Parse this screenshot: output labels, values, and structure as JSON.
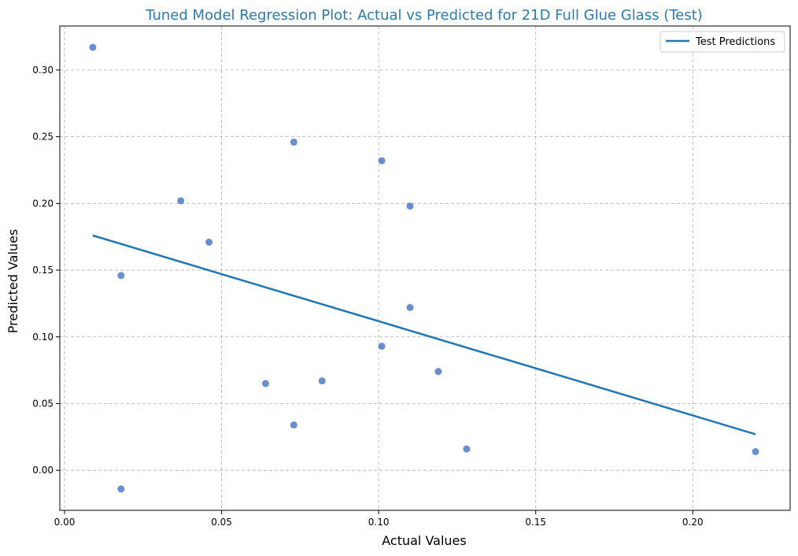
{
  "chart_data": {
    "type": "scatter",
    "title": "Tuned Model Regression Plot: Actual vs Predicted for 21D Full Glue Glass (Test)",
    "xlabel": "Actual Values",
    "ylabel": "Predicted Values",
    "xlim": [
      -0.0015,
      0.231
    ],
    "ylim": [
      -0.03,
      0.333
    ],
    "xticks": [
      0.0,
      0.05,
      0.1,
      0.15,
      0.2
    ],
    "xtick_labels": [
      "0.00",
      "0.05",
      "0.10",
      "0.15",
      "0.20"
    ],
    "yticks": [
      0.0,
      0.05,
      0.1,
      0.15,
      0.2,
      0.25,
      0.3
    ],
    "ytick_labels": [
      "0.00",
      "0.05",
      "0.10",
      "0.15",
      "0.20",
      "0.25",
      "0.30"
    ],
    "grid": true,
    "legend_position": "top-right",
    "colors": {
      "title": "#2a7ab5",
      "points": "#4472c4",
      "line": "#1f77b4",
      "grid": "#b0b0b0"
    },
    "points": [
      {
        "x": 0.009,
        "y": 0.317
      },
      {
        "x": 0.018,
        "y": 0.146
      },
      {
        "x": 0.018,
        "y": -0.014
      },
      {
        "x": 0.037,
        "y": 0.202
      },
      {
        "x": 0.046,
        "y": 0.171
      },
      {
        "x": 0.064,
        "y": 0.065
      },
      {
        "x": 0.073,
        "y": 0.246
      },
      {
        "x": 0.073,
        "y": 0.034
      },
      {
        "x": 0.082,
        "y": 0.067
      },
      {
        "x": 0.101,
        "y": 0.232
      },
      {
        "x": 0.101,
        "y": 0.093
      },
      {
        "x": 0.11,
        "y": 0.198
      },
      {
        "x": 0.11,
        "y": 0.122
      },
      {
        "x": 0.119,
        "y": 0.074
      },
      {
        "x": 0.128,
        "y": 0.016
      },
      {
        "x": 0.22,
        "y": 0.014
      }
    ],
    "series": [
      {
        "name": "Test Predictions",
        "type": "line",
        "x": [
          0.009,
          0.22
        ],
        "y": [
          0.176,
          0.027
        ]
      }
    ]
  }
}
